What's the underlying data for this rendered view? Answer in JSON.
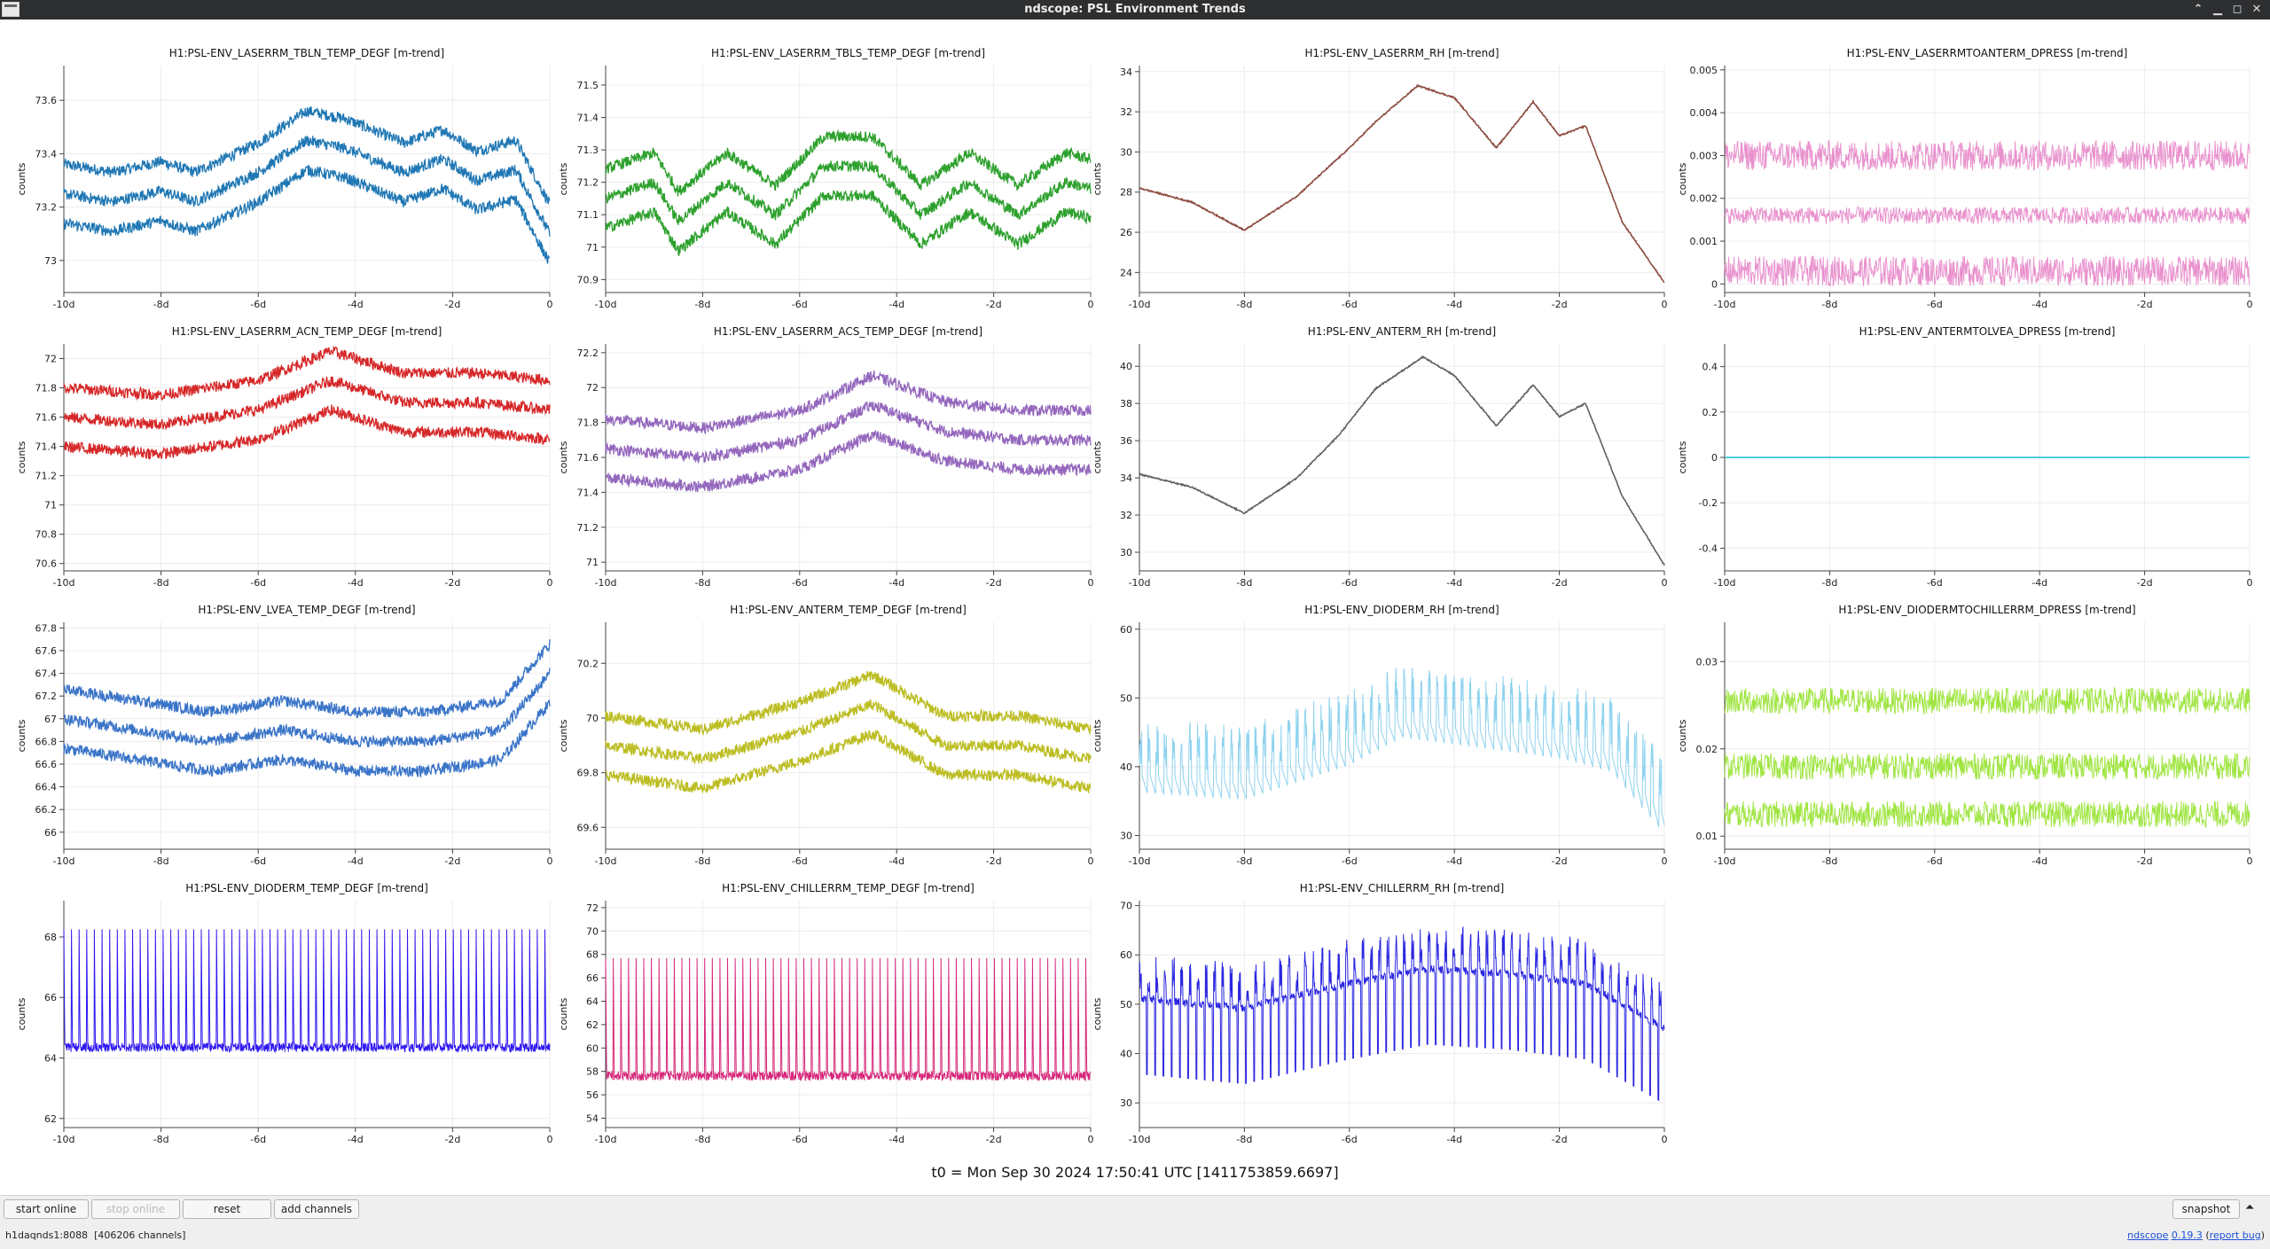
{
  "window": {
    "title": "ndscope: PSL Environment Trends"
  },
  "colors": {
    "tblnt": "#1f77b4",
    "tbls": "#2ca02c",
    "rh": "#8c4a3f",
    "dpress1": "#e377c2",
    "acn": "#d62728",
    "acs": "#9467bd",
    "anterm_rh": "#606060",
    "dpress2": "#17becf",
    "lvea": "#3a74c8",
    "anterm_temp": "#bcbd22",
    "dioderm_rh": "#8fd3ef",
    "dpress3": "#8fe022",
    "dioderm_temp": "#3018f0",
    "chiller_temp": "#d6287a",
    "chiller_rh": "#2b27e0"
  },
  "chart_data": [
    {
      "type": "line",
      "title": "H1:PSL-ENV_LASERRM_TBLN_TEMP_DEGF [m-trend]",
      "ylabel": "counts",
      "ylim": [
        72.88,
        73.73
      ],
      "xlim": [
        -10,
        0
      ],
      "yticks": [
        "73",
        "73.2",
        "73.4",
        "73.6"
      ],
      "xticks": [
        "-10d",
        "-8d",
        "-6d",
        "-4d",
        "-2d",
        "0"
      ],
      "series": [
        {
          "name": "",
          "x": [
            -10,
            -9,
            -8,
            -7.3,
            -6,
            -5,
            -4.2,
            -3,
            -2.2,
            -1.5,
            -0.7,
            0
          ],
          "y": [
            73.25,
            73.22,
            73.26,
            73.22,
            73.33,
            73.45,
            73.42,
            73.33,
            73.38,
            73.3,
            73.34,
            73.1
          ]
        }
      ]
    },
    {
      "type": "line",
      "title": "H1:PSL-ENV_LASERRM_TBLS_TEMP_DEGF [m-trend]",
      "ylabel": "counts",
      "ylim": [
        70.86,
        71.56
      ],
      "xlim": [
        -10,
        0
      ],
      "yticks": [
        "70.9",
        "71",
        "71.1",
        "71.2",
        "71.3",
        "71.4",
        "71.5"
      ],
      "xticks": [
        "-10d",
        "-8d",
        "-6d",
        "-4d",
        "-2d",
        "0"
      ],
      "series": [
        {
          "name": "",
          "x": [
            -10,
            -9,
            -8.5,
            -7.5,
            -6.5,
            -5.5,
            -4.5,
            -3.5,
            -2.5,
            -1.5,
            -0.5,
            0
          ],
          "y": [
            71.15,
            71.2,
            71.08,
            71.2,
            71.1,
            71.25,
            71.25,
            71.1,
            71.2,
            71.1,
            71.2,
            71.18
          ]
        }
      ]
    },
    {
      "type": "line",
      "title": "H1:PSL-ENV_LASERRM_RH [m-trend]",
      "ylabel": "counts",
      "ylim": [
        23,
        34.3
      ],
      "xlim": [
        -10,
        0
      ],
      "yticks": [
        "24",
        "26",
        "28",
        "30",
        "32",
        "34"
      ],
      "xticks": [
        "-10d",
        "-8d",
        "-6d",
        "-4d",
        "-2d",
        "0"
      ],
      "series": [
        {
          "name": "",
          "x": [
            -10,
            -9,
            -8,
            -7,
            -6,
            -5.5,
            -4.7,
            -4,
            -3.2,
            -2.5,
            -2,
            -1.5,
            -0.8,
            0
          ],
          "y": [
            28.2,
            27.5,
            26.1,
            27.8,
            30.2,
            31.5,
            33.3,
            32.7,
            30.2,
            32.5,
            30.8,
            31.3,
            26.5,
            23.5
          ]
        }
      ]
    },
    {
      "type": "line",
      "title": "H1:PSL-ENV_LASERRMTOANTERM_DPRESS [m-trend]",
      "ylabel": "counts",
      "ylim": [
        -0.0002,
        0.0051
      ],
      "xlim": [
        -10,
        0
      ],
      "yticks": [
        "0",
        "0.001",
        "0.002",
        "0.003",
        "0.004",
        "0.005"
      ],
      "xticks": [
        "-10d",
        "-8d",
        "-6d",
        "-4d",
        "-2d",
        "0"
      ],
      "series": [
        {
          "name": "",
          "x": [
            -10,
            -7.5,
            -5,
            -2.5,
            0
          ],
          "y": [
            0.0016,
            0.0017,
            0.0015,
            0.0016,
            0.0017
          ]
        }
      ]
    },
    {
      "type": "line",
      "title": "H1:PSL-ENV_LASERRM_ACN_TEMP_DEGF [m-trend]",
      "ylabel": "counts",
      "ylim": [
        70.55,
        72.1
      ],
      "xlim": [
        -10,
        0
      ],
      "yticks": [
        "70.6",
        "70.8",
        "71",
        "71.2",
        "71.4",
        "71.6",
        "71.8",
        "72"
      ],
      "xticks": [
        "-10d",
        "-8d",
        "-6d",
        "-4d",
        "-2d",
        "0"
      ],
      "series": [
        {
          "name": "",
          "x": [
            -10,
            -8,
            -6,
            -4.5,
            -3,
            -1.5,
            0
          ],
          "y": [
            71.6,
            71.55,
            71.65,
            71.85,
            71.7,
            71.7,
            71.65
          ]
        }
      ]
    },
    {
      "type": "line",
      "title": "H1:PSL-ENV_LASERRM_ACS_TEMP_DEGF [m-trend]",
      "ylabel": "counts",
      "ylim": [
        70.95,
        72.25
      ],
      "xlim": [
        -10,
        0
      ],
      "yticks": [
        "71",
        "71.2",
        "71.4",
        "71.6",
        "71.8",
        "72",
        "72.2"
      ],
      "xticks": [
        "-10d",
        "-8d",
        "-6d",
        "-4d",
        "-2d",
        "0"
      ],
      "series": [
        {
          "name": "",
          "x": [
            -10,
            -8,
            -6,
            -4.5,
            -3,
            -1.5,
            0
          ],
          "y": [
            71.65,
            71.6,
            71.7,
            71.9,
            71.75,
            71.7,
            71.7
          ]
        }
      ]
    },
    {
      "type": "line",
      "title": "H1:PSL-ENV_ANTERM_RH [m-trend]",
      "ylabel": "counts",
      "ylim": [
        29,
        41.2
      ],
      "xlim": [
        -10,
        0
      ],
      "yticks": [
        "30",
        "32",
        "34",
        "36",
        "38",
        "40"
      ],
      "xticks": [
        "-10d",
        "-8d",
        "-6d",
        "-4d",
        "-2d",
        "0"
      ],
      "series": [
        {
          "name": "",
          "x": [
            -10,
            -9,
            -8,
            -7,
            -6.2,
            -5.5,
            -4.6,
            -4,
            -3.2,
            -2.5,
            -2,
            -1.5,
            -0.8,
            0
          ],
          "y": [
            34.2,
            33.5,
            32.1,
            34,
            36.3,
            38.8,
            40.5,
            39.5,
            36.8,
            39,
            37.3,
            38,
            33,
            29.3
          ]
        }
      ]
    },
    {
      "type": "line",
      "title": "H1:PSL-ENV_ANTERMTOLVEA_DPRESS [m-trend]",
      "ylabel": "counts",
      "ylim": [
        -0.5,
        0.5
      ],
      "xlim": [
        -10,
        0
      ],
      "yticks": [
        "-0.4",
        "-0.2",
        "0",
        "0.2",
        "0.4"
      ],
      "xticks": [
        "-10d",
        "-8d",
        "-6d",
        "-4d",
        "-2d",
        "0"
      ],
      "series": [
        {
          "name": "",
          "x": [
            -10,
            0
          ],
          "y": [
            0,
            0
          ]
        }
      ]
    },
    {
      "type": "line",
      "title": "H1:PSL-ENV_LVEA_TEMP_DEGF [m-trend]",
      "ylabel": "counts",
      "ylim": [
        65.85,
        67.85
      ],
      "xlim": [
        -10,
        0
      ],
      "yticks": [
        "66",
        "66.2",
        "66.4",
        "66.6",
        "66.8",
        "67",
        "67.2",
        "67.4",
        "67.6",
        "67.8"
      ],
      "xticks": [
        "-10d",
        "-8d",
        "-6d",
        "-4d",
        "-2d",
        "0"
      ],
      "series": [
        {
          "name": "",
          "x": [
            -10,
            -8.5,
            -7,
            -5.5,
            -4,
            -2.5,
            -1,
            0
          ],
          "y": [
            67,
            66.9,
            66.8,
            66.9,
            66.8,
            66.8,
            66.9,
            67.4
          ]
        }
      ]
    },
    {
      "type": "line",
      "title": "H1:PSL-ENV_ANTERM_TEMP_DEGF [m-trend]",
      "ylabel": "counts",
      "ylim": [
        69.52,
        70.35
      ],
      "xlim": [
        -10,
        0
      ],
      "yticks": [
        "69.6",
        "69.8",
        "70",
        "70.2"
      ],
      "xticks": [
        "-10d",
        "-8d",
        "-6d",
        "-4d",
        "-2d",
        "0"
      ],
      "series": [
        {
          "name": "",
          "x": [
            -10,
            -8,
            -6,
            -4.5,
            -3,
            -1.5,
            0
          ],
          "y": [
            69.9,
            69.85,
            69.95,
            70.05,
            69.9,
            69.9,
            69.85
          ]
        }
      ]
    },
    {
      "type": "line",
      "title": "H1:PSL-ENV_DIODERM_RH [m-trend]",
      "ylabel": "counts",
      "ylim": [
        28,
        61
      ],
      "xlim": [
        -10,
        0
      ],
      "yticks": [
        "30",
        "40",
        "50",
        "60"
      ],
      "xticks": [
        "-10d",
        "-8d",
        "-6d",
        "-4d",
        "-2d",
        "0"
      ],
      "series": [
        {
          "name": "",
          "x": [
            -10,
            -8,
            -6,
            -5,
            -4,
            -2,
            -1,
            0
          ],
          "y": [
            40,
            39,
            44,
            48,
            47,
            45,
            43,
            34
          ]
        }
      ]
    },
    {
      "type": "line",
      "title": "H1:PSL-ENV_DIODERMTOCHILLERRM_DPRESS [m-trend]",
      "ylabel": "counts",
      "ylim": [
        0.0085,
        0.0345
      ],
      "xlim": [
        -10,
        0
      ],
      "yticks": [
        "0.01",
        "0.02",
        "0.03"
      ],
      "xticks": [
        "-10d",
        "-8d",
        "-6d",
        "-4d",
        "-2d",
        "0"
      ],
      "series": [
        {
          "name": "",
          "x": [
            -10,
            -5,
            0
          ],
          "y": [
            0.018,
            0.0175,
            0.018
          ]
        }
      ]
    },
    {
      "type": "line",
      "title": "H1:PSL-ENV_DIODERM_TEMP_DEGF [m-trend]",
      "ylabel": "counts",
      "ylim": [
        61.7,
        69.2
      ],
      "xlim": [
        -10,
        0
      ],
      "yticks": [
        "62",
        "64",
        "66",
        "68"
      ],
      "xticks": [
        "-10d",
        "-8d",
        "-6d",
        "-4d",
        "-2d",
        "0"
      ],
      "series": [
        {
          "name": "",
          "x": [
            -10,
            -5,
            0
          ],
          "y": [
            64.5,
            64.5,
            64.5
          ]
        }
      ]
    },
    {
      "type": "line",
      "title": "H1:PSL-ENV_CHILLERRM_TEMP_DEGF [m-trend]",
      "ylabel": "counts",
      "ylim": [
        53.2,
        72.6
      ],
      "xlim": [
        -10,
        0
      ],
      "yticks": [
        "54",
        "56",
        "58",
        "60",
        "62",
        "64",
        "66",
        "68",
        "70",
        "72"
      ],
      "xticks": [
        "-10d",
        "-8d",
        "-6d",
        "-4d",
        "-2d",
        "0"
      ],
      "series": [
        {
          "name": "",
          "x": [
            -10,
            -5,
            0
          ],
          "y": [
            58,
            58,
            58
          ]
        }
      ]
    },
    {
      "type": "line",
      "title": "H1:PSL-ENV_CHILLERRM_RH [m-trend]",
      "ylabel": "counts",
      "ylim": [
        25,
        71
      ],
      "xlim": [
        -10,
        0
      ],
      "yticks": [
        "30",
        "40",
        "50",
        "60",
        "70"
      ],
      "xticks": [
        "-10d",
        "-8d",
        "-6d",
        "-4d",
        "-2d",
        "0"
      ],
      "series": [
        {
          "name": "",
          "x": [
            -10,
            -8,
            -6,
            -4.5,
            -3,
            -1.5,
            0
          ],
          "y": [
            52,
            50,
            55,
            58,
            57,
            55,
            46
          ]
        }
      ]
    }
  ],
  "t0_label": "t0 = Mon Sep 30 2024 17:50:41 UTC [1411753859.6697]",
  "toolbar": {
    "start_online": "start online",
    "stop_online": "stop online",
    "reset": "reset",
    "add_channels": "add channels",
    "snapshot": "snapshot"
  },
  "status": {
    "server": "h1daqnds1:8088",
    "channels": "[406206 channels]"
  },
  "version": {
    "app": "ndscope",
    "number": "0.19.3",
    "report": "report bug"
  }
}
